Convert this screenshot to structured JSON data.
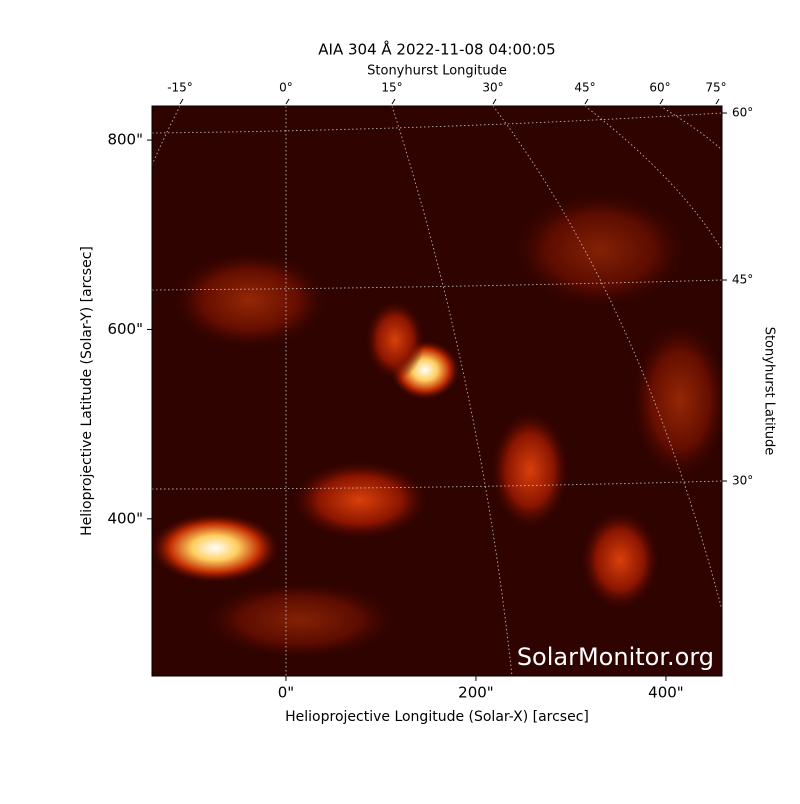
{
  "chart_data": {
    "type": "image",
    "title": "AIA 304 Å 2022-11-08 04:00:05",
    "x_label": "Helioprojective Longitude (Solar-X) [arcsec]",
    "y_label": "Helioprojective Latitude (Solar-Y) [arcsec]",
    "top_label": "Stonyhurst Longitude",
    "right_label": "Stonyhurst Latitude",
    "watermark": "SolarMonitor.org",
    "xlim": [
      -141,
      459
    ],
    "ylim": [
      234,
      836
    ],
    "xticks": [
      {
        "value": 0,
        "label": "0\""
      },
      {
        "value": 200,
        "label": "200\""
      },
      {
        "value": 400,
        "label": "400\""
      }
    ],
    "yticks": [
      {
        "value": 400,
        "label": "400\""
      },
      {
        "value": 600,
        "label": "600\""
      },
      {
        "value": 800,
        "label": "800\""
      }
    ],
    "lon_ticks": [
      {
        "value": -15,
        "label": "-15°"
      },
      {
        "value": 0,
        "label": "0°"
      },
      {
        "value": 15,
        "label": "15°"
      },
      {
        "value": 30,
        "label": "30°"
      },
      {
        "value": 45,
        "label": "45°"
      },
      {
        "value": 60,
        "label": "60°"
      },
      {
        "value": 75,
        "label": "75°"
      }
    ],
    "lat_ticks": [
      {
        "value": 60,
        "label": "60°"
      },
      {
        "value": 45,
        "label": "45°"
      },
      {
        "value": 30,
        "label": "30°"
      }
    ]
  }
}
